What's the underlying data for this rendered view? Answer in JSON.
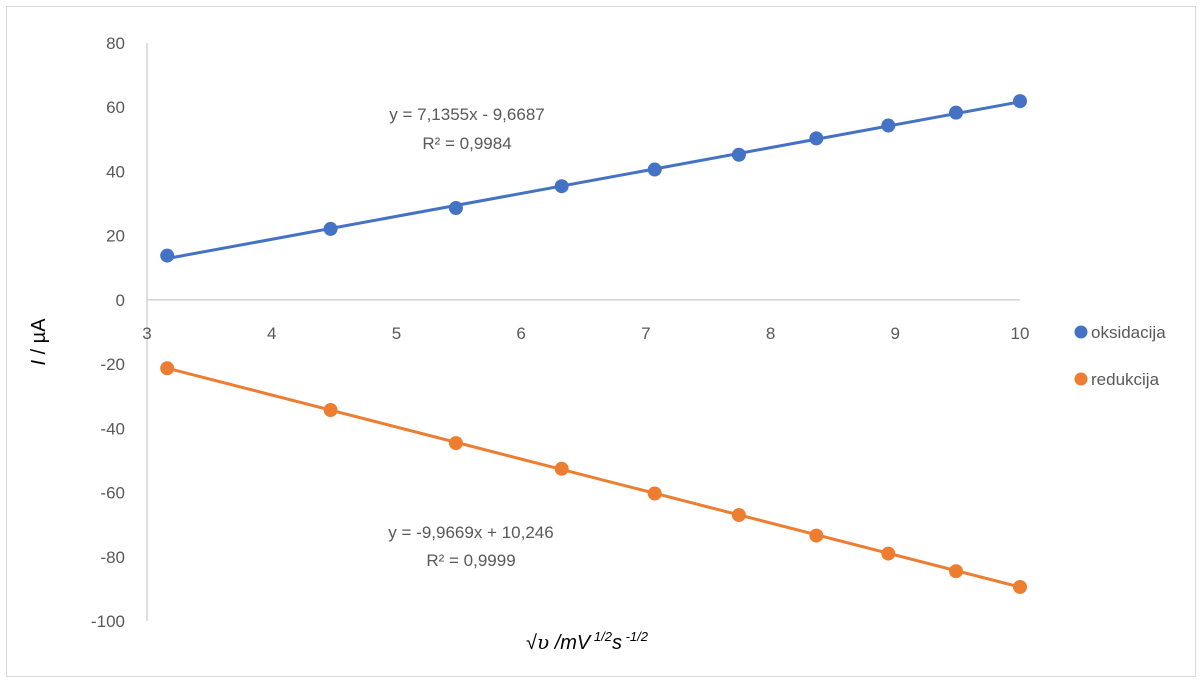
{
  "chart_data": {
    "type": "scatter",
    "title": "",
    "xlabel_symbol": "√",
    "xlabel_var": "υ",
    "xlabel_unit": " /mV",
    "xlabel_exp1": " 1/2",
    "xlabel_s": "s",
    "xlabel_exp2": " -1/2",
    "ylabel_var": "I",
    "ylabel_unit": " / µA",
    "xlim": [
      3,
      10
    ],
    "ylim": [
      -100,
      80
    ],
    "xticks": [
      "3",
      "4",
      "5",
      "6",
      "7",
      "8",
      "9",
      "10"
    ],
    "yticks": [
      "80",
      "60",
      "40",
      "20",
      "0",
      "-20",
      "-40",
      "-60",
      "-80",
      "-100"
    ],
    "legend_position": "right",
    "series": [
      {
        "name": "oksidacija",
        "color": "#4472C4",
        "x": [
          3.162,
          4.472,
          5.477,
          6.325,
          7.071,
          7.746,
          8.367,
          8.944,
          9.487,
          10.0
        ],
        "y": [
          13.8,
          22.1,
          28.6,
          35.4,
          40.6,
          45.2,
          50.3,
          54.3,
          58.3,
          61.9
        ],
        "trendline": {
          "slope": 7.1355,
          "intercept": -9.6687
        },
        "equation": "y = 7,1355x - 9,6687",
        "r2": "R² = 0,9984"
      },
      {
        "name": "redukcija",
        "color": "#ED7D31",
        "x": [
          3.162,
          4.472,
          5.477,
          6.325,
          7.071,
          7.746,
          8.367,
          8.944,
          9.487,
          10.0
        ],
        "y": [
          -21.3,
          -34.3,
          -44.6,
          -52.6,
          -60.3,
          -67.0,
          -73.4,
          -79.0,
          -84.5,
          -89.4
        ],
        "trendline": {
          "slope": -9.9669,
          "intercept": 10.246
        },
        "equation": "y = -9,9669x + 10,246",
        "r2": "R² = 0,9999"
      }
    ]
  }
}
